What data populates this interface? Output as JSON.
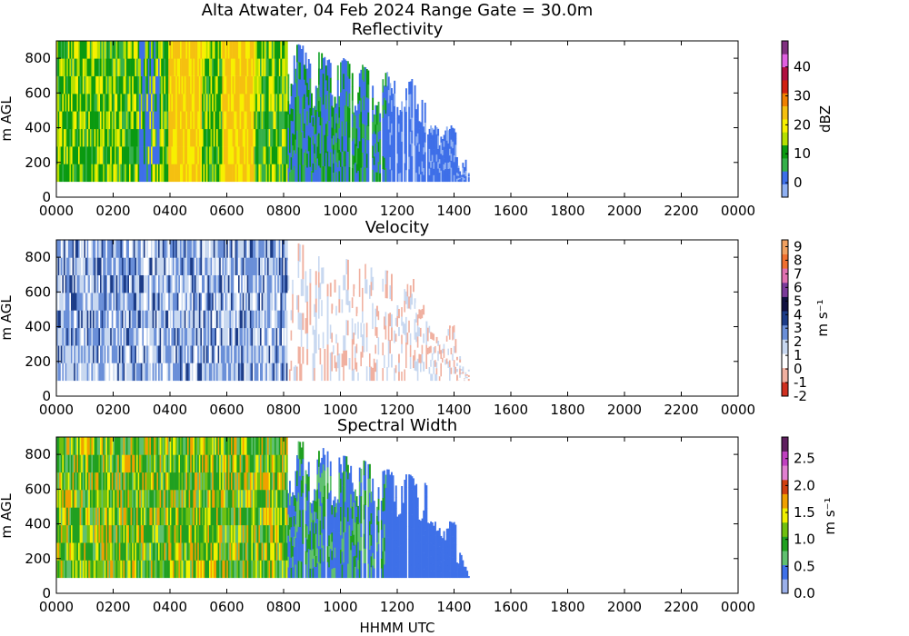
{
  "figure": {
    "title": "Alta Atwater, 04 Feb 2024 Range Gate = 30.0m",
    "xlabel": "HHMM UTC"
  },
  "colors": {
    "reflectivity_palette": [
      "#8fb0f2",
      "#3e6fe8",
      "#35b04a",
      "#0a9a10",
      "#b5e000",
      "#f7f000",
      "#f5c010",
      "#f08000",
      "#d02010",
      "#b01040",
      "#e060e0",
      "#803080"
    ],
    "velocity_palette": [
      "#d03020",
      "#f0b0a0",
      "#ffffff",
      "#c8d8f0",
      "#6a8fd8",
      "#1c3c88",
      "#101040",
      "#7a3a9a",
      "#e070b0",
      "#f07030",
      "#f0a060"
    ],
    "width_palette": [
      "#9bb0ea",
      "#3e70e8",
      "#60c070",
      "#20a020",
      "#70c010",
      "#f0f000",
      "#f0a000",
      "#d04010",
      "#e080d0",
      "#c040c0",
      "#602060"
    ]
  },
  "chart_data": [
    {
      "type": "heatmap",
      "title": "Reflectivity",
      "ylabel": "m AGL",
      "xlim": [
        0,
        2400
      ],
      "ylim": [
        0,
        900
      ],
      "x_ticks": [
        "0000",
        "0200",
        "0400",
        "0600",
        "0800",
        "1000",
        "1200",
        "1400",
        "1600",
        "1800",
        "2000",
        "2200",
        "0000"
      ],
      "y_ticks": [
        0,
        200,
        400,
        600,
        800
      ],
      "data_time_range": [
        "0000",
        "1450"
      ],
      "data_height_range": [
        90,
        900
      ],
      "colorbar": {
        "label": "dBZ",
        "range": [
          -5,
          49
        ],
        "ticks": [
          0,
          10,
          20,
          30,
          40
        ]
      }
    },
    {
      "type": "heatmap",
      "title": "Velocity",
      "ylabel": "m s⁻¹",
      "ylabel_left": "m AGL",
      "xlim": [
        0,
        2400
      ],
      "ylim": [
        0,
        900
      ],
      "x_ticks": [
        "0000",
        "0200",
        "0400",
        "0600",
        "0800",
        "1000",
        "1200",
        "1400",
        "1600",
        "1800",
        "2000",
        "2200",
        "0000"
      ],
      "y_ticks": [
        0,
        200,
        400,
        600,
        800
      ],
      "data_time_range": [
        "0000",
        "1450"
      ],
      "data_height_range": [
        90,
        900
      ],
      "colorbar": {
        "label": "m s⁻¹",
        "range": [
          -2,
          9.5
        ],
        "ticks": [
          -2,
          -1,
          0,
          1,
          2,
          3,
          4,
          5,
          6,
          7,
          8,
          9
        ]
      }
    },
    {
      "type": "heatmap",
      "title": "Spectral Width",
      "ylabel_left": "m AGL",
      "xlim": [
        0,
        2400
      ],
      "ylim": [
        0,
        900
      ],
      "x_ticks": [
        "0000",
        "0200",
        "0400",
        "0600",
        "0800",
        "1000",
        "1200",
        "1400",
        "1600",
        "1800",
        "2000",
        "2200",
        "0000"
      ],
      "y_ticks": [
        0,
        200,
        400,
        600,
        800
      ],
      "data_time_range": [
        "0000",
        "1450"
      ],
      "data_height_range": [
        90,
        900
      ],
      "colorbar": {
        "label": "m s⁻¹",
        "range": [
          0,
          2.9
        ],
        "ticks": [
          "0.0",
          "0.5",
          "1.0",
          "1.5",
          "2.0",
          "2.5"
        ]
      }
    }
  ]
}
